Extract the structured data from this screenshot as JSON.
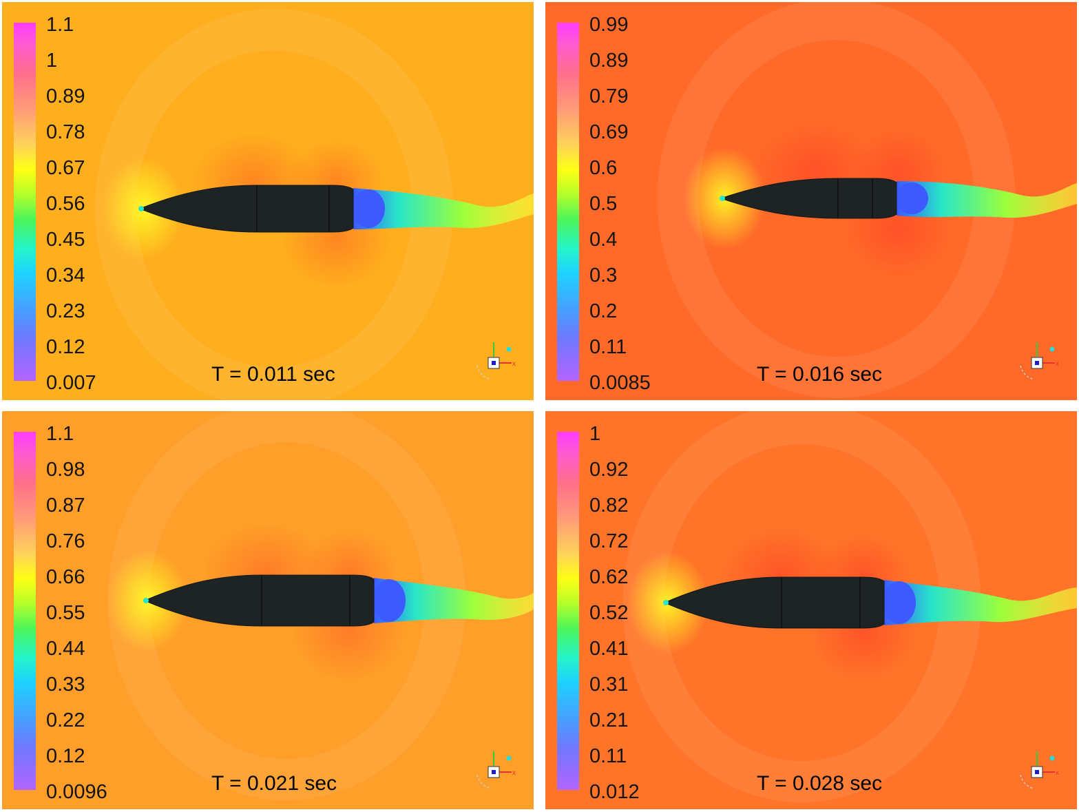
{
  "panels": [
    {
      "time_label": "T = 0.011 sec",
      "background": "#ffae1e",
      "colorbar_ticks": [
        "1.1",
        "1",
        "0.89",
        "0.78",
        "0.67",
        "0.56",
        "0.45",
        "0.34",
        "0.23",
        "0.12",
        "0.007"
      ]
    },
    {
      "time_label": "T = 0.016 sec",
      "background": "#ff6a28",
      "colorbar_ticks": [
        "0.99",
        "0.89",
        "0.79",
        "0.69",
        "0.6",
        "0.5",
        "0.4",
        "0.3",
        "0.2",
        "0.11",
        "0.0085"
      ]
    },
    {
      "time_label": "T = 0.021 sec",
      "background": "#ff9e28",
      "colorbar_ticks": [
        "1.1",
        "0.98",
        "0.87",
        "0.76",
        "0.66",
        "0.55",
        "0.44",
        "0.33",
        "0.22",
        "0.12",
        "0.0096"
      ]
    },
    {
      "time_label": "T = 0.028 sec",
      "background": "#ff7428",
      "colorbar_ticks": [
        "1",
        "0.92",
        "0.82",
        "0.72",
        "0.62",
        "0.52",
        "0.41",
        "0.31",
        "0.21",
        "0.11",
        "0.012"
      ]
    }
  ],
  "colors": {
    "body": "#1e2424",
    "wake_cold": "#3c5aff",
    "wake_mid": "#28e6c8",
    "wake_warm": "#9bff3c",
    "high_zone": "#ff3c28"
  },
  "icons": [
    "coordinate-triad-icon"
  ]
}
